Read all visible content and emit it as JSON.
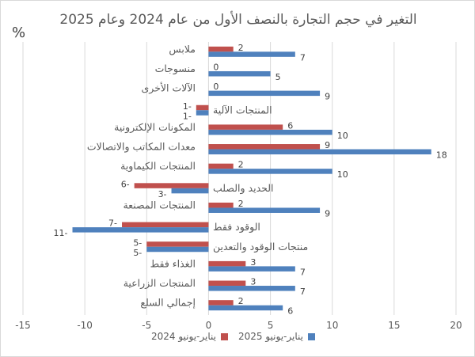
{
  "chart_data": {
    "type": "bar",
    "orientation": "horizontal",
    "title": "التغير في حجم التجارة بالنصف الأول من عام 2024 وعام 2025",
    "unit_label": "%",
    "categories": [
      "ملابس",
      "منسوجات",
      "الآلات الأخرى",
      "المنتجات الآلية",
      "المكونات الإلكترونية",
      "معدات المكاتب والاتصالات",
      "المنتجات الكيماوية",
      "الحديد والصلب",
      "المنتجات المصنعة",
      "الوقود فقط",
      "منتجات الوقود والتعدين",
      "الغذاء فقط",
      "المنتجات الزراعية",
      "إجمالي السلع"
    ],
    "series": [
      {
        "name": "يناير-يونيو 2024",
        "color": "#c0504d",
        "values": [
          2,
          0,
          0,
          -1,
          6,
          9,
          2,
          -6,
          2,
          -7,
          -5,
          3,
          3,
          2
        ]
      },
      {
        "name": "يناير-يونيو 2025",
        "color": "#4f81bd",
        "values": [
          7,
          5,
          9,
          -1,
          10,
          18,
          10,
          -3,
          9,
          -11,
          -5,
          7,
          7,
          6
        ]
      }
    ],
    "xlim": [
      -15,
      20
    ],
    "xticks": [
      -15,
      -10,
      -5,
      0,
      5,
      10,
      15,
      20
    ],
    "grid": true,
    "legend_position": "bottom"
  }
}
